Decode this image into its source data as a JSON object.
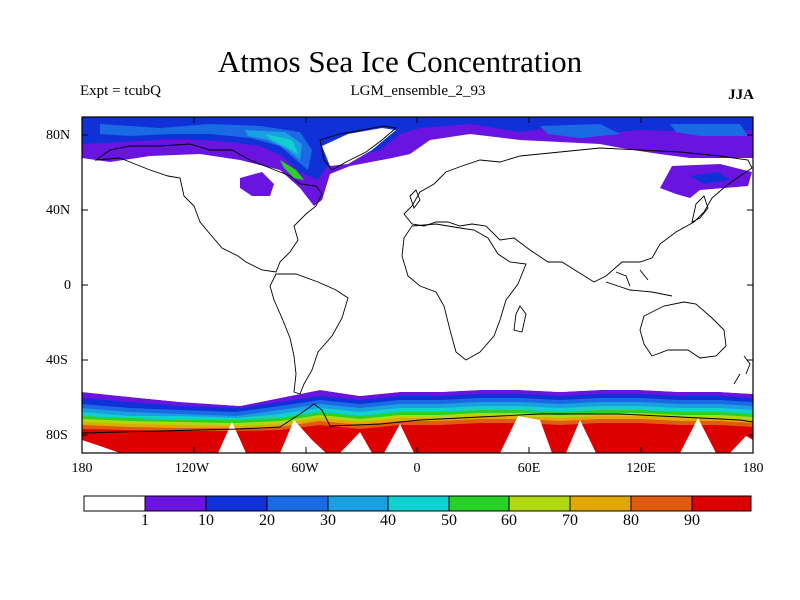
{
  "map": {
    "title": "Atmos Sea Ice Concentration",
    "experiment_label": "Expt = tcubQ",
    "run_label": "LGM_ensemble_2_93",
    "season_label": "JJA",
    "lat_labels": [
      "80N",
      "40N",
      "0",
      "40S",
      "80S"
    ],
    "lon_labels": [
      "180",
      "120W",
      "60W",
      "0",
      "60E",
      "120E",
      "180"
    ]
  },
  "colorbar": {
    "labels": [
      "1",
      "10",
      "20",
      "30",
      "40",
      "50",
      "60",
      "70",
      "80",
      "90"
    ],
    "colors": [
      "#ffffff",
      "#6a14e0",
      "#1030d8",
      "#1a6ae4",
      "#1aa0e0",
      "#10d0d0",
      "#28d028",
      "#b0d810",
      "#e0a800",
      "#e05a10",
      "#dc0000"
    ]
  }
}
